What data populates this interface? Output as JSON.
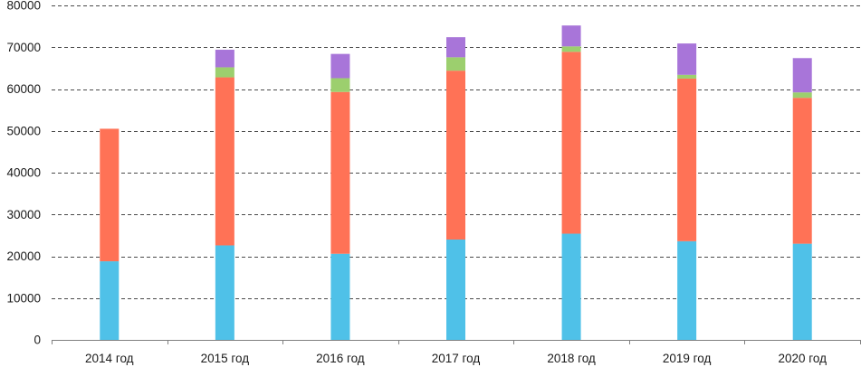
{
  "chart_data": {
    "type": "bar",
    "stacked": true,
    "title": "",
    "xlabel": "",
    "ylabel": "",
    "ylim": [
      0,
      80000
    ],
    "yticks": [
      0,
      10000,
      20000,
      30000,
      40000,
      50000,
      60000,
      70000,
      80000
    ],
    "grid": true,
    "legend": "none",
    "categories": [
      "2014 год",
      "2015 год",
      "2016 год",
      "2017 год",
      "2018 год",
      "2019 год",
      "2020 год"
    ],
    "series": [
      {
        "color": "#4fc1e8",
        "values": [
          18800,
          22600,
          20600,
          24000,
          25400,
          23600,
          23000
        ]
      },
      {
        "color": "#ff7256",
        "values": [
          31700,
          40200,
          38700,
          40400,
          43500,
          38900,
          34900
        ]
      },
      {
        "color": "#9ccf6e",
        "values": [
          0,
          2400,
          3300,
          3200,
          1300,
          900,
          1300
        ]
      },
      {
        "color": "#a875d9",
        "values": [
          0,
          4200,
          5800,
          4800,
          5000,
          7500,
          8200
        ]
      }
    ]
  }
}
